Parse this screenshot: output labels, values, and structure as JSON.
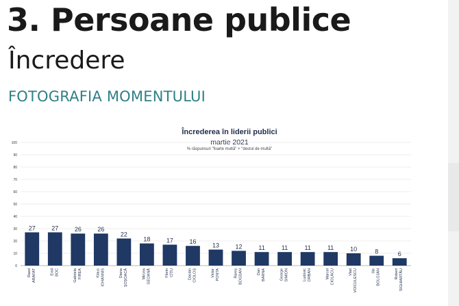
{
  "slide": {
    "title": "3.  Persoane publice",
    "subtitle": "Încredere",
    "section": "FOTOGRAFIA MOMENTULUI"
  },
  "colors": {
    "bar": "#1f3864",
    "section_text": "#2e7f86",
    "gridline": "#d9d9d9"
  },
  "chart_data": {
    "type": "bar",
    "title": "Încrederea în liderii publici",
    "subtitle": "martie 2021",
    "note": "% răspunsuri \"foarte multă\" + \"destul de multă\"",
    "ylim": [
      0,
      100
    ],
    "yticks": [
      0,
      10,
      20,
      30,
      40,
      50,
      60,
      70,
      80,
      90,
      100
    ],
    "grid": true,
    "categories": [
      [
        "Raed",
        "ARAFAT"
      ],
      [
        "Emil",
        "BOC"
      ],
      [
        "Gabriela",
        "FIREA"
      ],
      [
        "Klaus",
        "IOHANNIS"
      ],
      [
        "Diana",
        "ȘOȘOACĂ"
      ],
      [
        "Mircea",
        "GEOANĂ"
      ],
      [
        "Florin",
        "CÎȚU"
      ],
      [
        "Dacian",
        "CIOLOȘ"
      ],
      [
        "Victor",
        "PONTA"
      ],
      [
        "Rareș",
        "BOGDAN"
      ],
      [
        "Dan",
        "BARNA"
      ],
      [
        "George",
        "SIMION"
      ],
      [
        "Ludovic",
        "ORBAN"
      ],
      [
        "Marcel",
        "CIOLACU"
      ],
      [
        "Vlad",
        "VOICULESCU"
      ],
      [
        "Ilie",
        "BOLOJAN"
      ],
      [
        "Robert",
        "SIGHIARTĂU"
      ]
    ],
    "values": [
      27,
      27,
      26,
      26,
      22,
      18,
      17,
      16,
      13,
      12,
      11,
      11,
      11,
      11,
      10,
      8,
      6
    ]
  }
}
